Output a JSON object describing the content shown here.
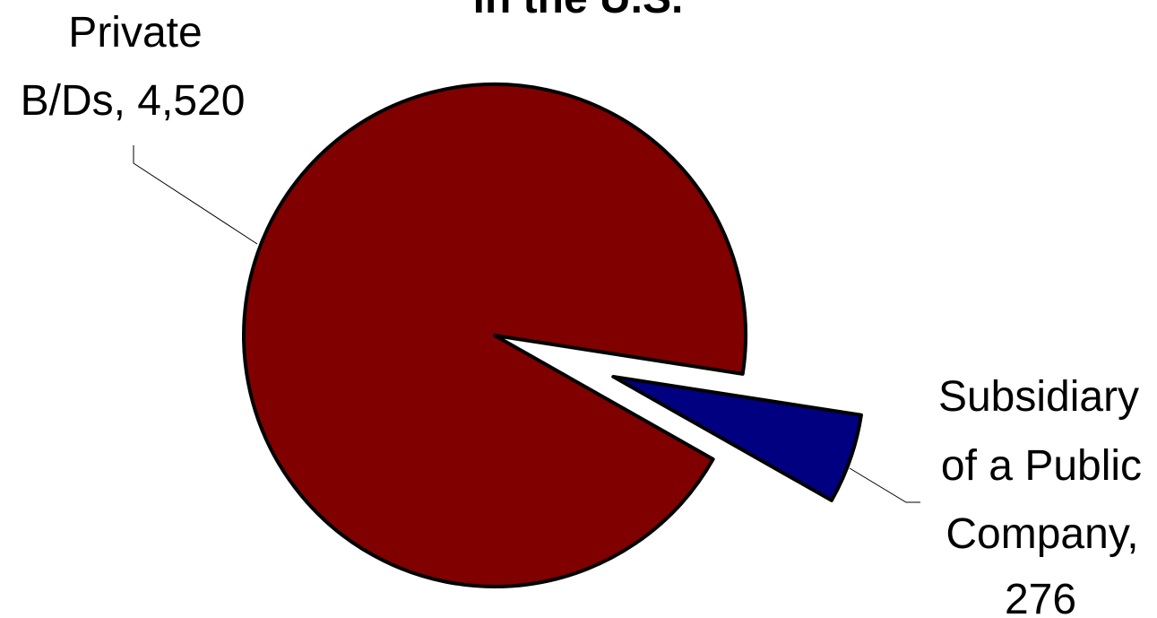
{
  "chart_data": {
    "type": "pie",
    "title": "in the U.S.",
    "slices": [
      {
        "label": "Private B/Ds, 4,520",
        "label_lines": [
          "Private",
          "B/Ds, 4,520"
        ],
        "category": "Private B/Ds",
        "value": 4520,
        "color": "#800000",
        "exploded": false
      },
      {
        "label": "Subsidiary of a Public Company, 276",
        "label_lines": [
          "Subsidiary",
          "of a Public",
          "Company,",
          "276"
        ],
        "category": "Subsidiary of a Public Company",
        "value": 276,
        "color": "#000080",
        "exploded": true
      }
    ],
    "legend": "none",
    "data_labels": "outside with leader lines"
  }
}
